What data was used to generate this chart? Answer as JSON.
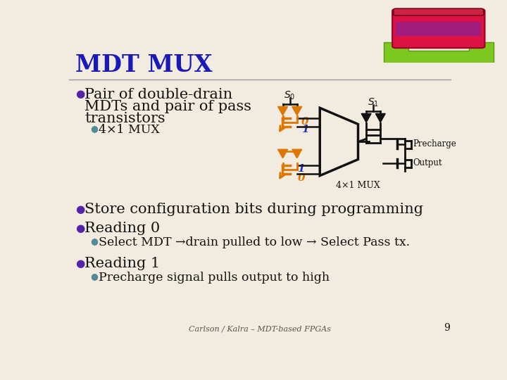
{
  "title": "MDT MUX",
  "title_color": "#1a1ab8",
  "background_color": "#f2ece0",
  "bullet_color": "#5522aa",
  "sub_bullet_color": "#558899",
  "black_color": "#111111",
  "orange_color": "#dd7700",
  "blue_label_color": "#2233bb",
  "bullet1_line1": "Pair of double-drain",
  "bullet1_line2": "MDTs and pair of pass",
  "bullet1_line3": "transistors",
  "sub_bullet1": "4×1 MUX",
  "bullet2": "Store configuration bits during programming",
  "bullet3": "Reading 0",
  "sub_bullet3": "Select MDT →drain pulled to low → Select Pass tx.",
  "bullet4": "Reading 1",
  "sub_bullet4": "Precharge signal pulls output to high",
  "footer": "Carlson / Kalra – MDT-based FPGAs",
  "page_number": "9",
  "diagram_label_precharge": "Precharge",
  "diagram_label_output": "Output",
  "diagram_label_mux": "4×1 MUX"
}
